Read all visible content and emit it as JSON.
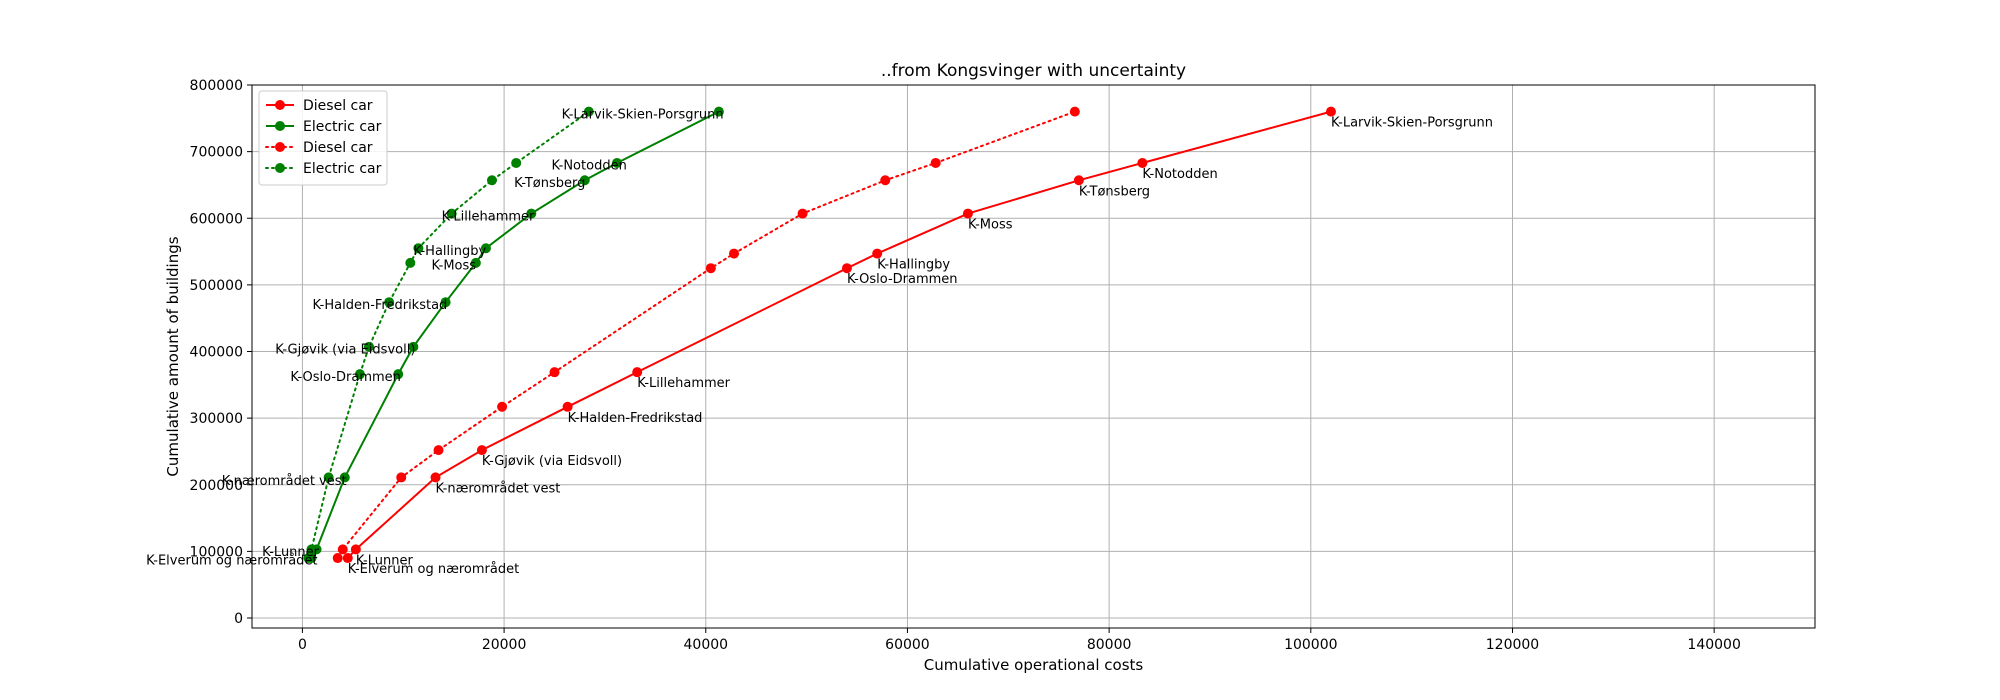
{
  "chart_data": {
    "type": "line",
    "title": "..from Kongsvinger with uncertainty",
    "xlabel": "Cumulative operational costs",
    "ylabel": "Cumulative amount of buildings",
    "xlim": [
      -5000,
      150000
    ],
    "ylim": [
      -15000,
      800000
    ],
    "xticks": [
      0,
      20000,
      40000,
      60000,
      80000,
      100000,
      120000,
      140000
    ],
    "yticks": [
      0,
      100000,
      200000,
      300000,
      400000,
      500000,
      600000,
      700000,
      800000
    ],
    "grid": true,
    "legend_position": "top-left",
    "colors": {
      "diesel": "#ff0000",
      "electric": "#008000"
    },
    "series": [
      {
        "name": "Diesel car",
        "color": "#ff0000",
        "style": "solid",
        "points": [
          {
            "x": 4500,
            "y": 90000,
            "label": "K-Elverum og nærområdet"
          },
          {
            "x": 5300,
            "y": 103000,
            "label": "K-Lunner"
          },
          {
            "x": 13200,
            "y": 211000,
            "label": "K-nærområdet vest"
          },
          {
            "x": 17800,
            "y": 252000,
            "label": "K-Gjøvik (via Eidsvoll)"
          },
          {
            "x": 26300,
            "y": 317000,
            "label": "K-Halden-Fredrikstad"
          },
          {
            "x": 33200,
            "y": 369000,
            "label": "K-Lillehammer"
          },
          {
            "x": 54000,
            "y": 525000,
            "label": "K-Oslo-Drammen"
          },
          {
            "x": 57000,
            "y": 547000,
            "label": "K-Hallingby"
          },
          {
            "x": 66000,
            "y": 607000,
            "label": "K-Moss"
          },
          {
            "x": 77000,
            "y": 657000,
            "label": "K-Tønsberg"
          },
          {
            "x": 83300,
            "y": 683000,
            "label": "K-Notodden"
          },
          {
            "x": 102000,
            "y": 760000,
            "label": "K-Larvik-Skien-Porsgrunn"
          }
        ]
      },
      {
        "name": "Electric car",
        "color": "#008000",
        "style": "solid",
        "points": [
          {
            "x": 900,
            "y": 90000,
            "label": ""
          },
          {
            "x": 1400,
            "y": 103000,
            "label": ""
          },
          {
            "x": 4200,
            "y": 211000,
            "label": ""
          },
          {
            "x": 9500,
            "y": 366000,
            "label": ""
          },
          {
            "x": 11000,
            "y": 407000,
            "label": ""
          },
          {
            "x": 14200,
            "y": 474000,
            "label": ""
          },
          {
            "x": 17200,
            "y": 533000,
            "label": ""
          },
          {
            "x": 18200,
            "y": 555000,
            "label": ""
          },
          {
            "x": 22700,
            "y": 607000,
            "label": ""
          },
          {
            "x": 28000,
            "y": 657000,
            "label": ""
          },
          {
            "x": 31200,
            "y": 683000,
            "label": ""
          },
          {
            "x": 41300,
            "y": 760000,
            "label": ""
          }
        ]
      },
      {
        "name": "Diesel car",
        "color": "#ff0000",
        "style": "dotted",
        "points": [
          {
            "x": 3500,
            "y": 90000,
            "label": ""
          },
          {
            "x": 4000,
            "y": 103000,
            "label": ""
          },
          {
            "x": 9800,
            "y": 211000,
            "label": ""
          },
          {
            "x": 13500,
            "y": 252000,
            "label": ""
          },
          {
            "x": 19800,
            "y": 317000,
            "label": ""
          },
          {
            "x": 25000,
            "y": 369000,
            "label": ""
          },
          {
            "x": 40500,
            "y": 525000,
            "label": ""
          },
          {
            "x": 42800,
            "y": 547000,
            "label": ""
          },
          {
            "x": 49600,
            "y": 607000,
            "label": ""
          },
          {
            "x": 57800,
            "y": 657000,
            "label": ""
          },
          {
            "x": 62800,
            "y": 683000,
            "label": ""
          },
          {
            "x": 76600,
            "y": 760000,
            "label": ""
          }
        ]
      },
      {
        "name": "Electric car",
        "color": "#008000",
        "style": "dotted",
        "points": [
          {
            "x": 600,
            "y": 90000,
            "label": ""
          },
          {
            "x": 900,
            "y": 103000,
            "label": ""
          },
          {
            "x": 2600,
            "y": 211000,
            "label": ""
          },
          {
            "x": 5700,
            "y": 366000,
            "label": ""
          },
          {
            "x": 6600,
            "y": 407000,
            "label": ""
          },
          {
            "x": 8600,
            "y": 474000,
            "label": ""
          },
          {
            "x": 10700,
            "y": 533000,
            "label": ""
          },
          {
            "x": 11500,
            "y": 555000,
            "label": ""
          },
          {
            "x": 14800,
            "y": 607000,
            "label": ""
          },
          {
            "x": 18800,
            "y": 657000,
            "label": ""
          },
          {
            "x": 21200,
            "y": 683000,
            "label": ""
          },
          {
            "x": 28400,
            "y": 760000,
            "label": ""
          }
        ]
      }
    ],
    "annotations": [
      {
        "text": "K-Elverum og nærområdet",
        "x": -15500,
        "y": 80000
      },
      {
        "text": "K-Lunner",
        "x": -4000,
        "y": 93000
      },
      {
        "text": "K-nærområdet vest",
        "x": -8000,
        "y": 200000
      },
      {
        "text": "K-Oslo-Drammen",
        "x": -1200,
        "y": 356000
      },
      {
        "text": "K-Gjøvik (via Eidsvoll)",
        "x": -2700,
        "y": 397000
      },
      {
        "text": "K-Halden-Fredrikstad",
        "x": 1000,
        "y": 464000
      },
      {
        "text": "K-Moss",
        "x": 12800,
        "y": 523000
      },
      {
        "text": "K-Hallingby",
        "x": 11000,
        "y": 545000
      },
      {
        "text": "K-Lillehammer",
        "x": 13800,
        "y": 597000
      },
      {
        "text": "K-Tønsberg",
        "x": 21000,
        "y": 647000
      },
      {
        "text": "K-Notodden",
        "x": 24700,
        "y": 673000
      },
      {
        "text": "K-Larvik-Skien-Porsgrunn",
        "x": 25700,
        "y": 750000
      }
    ]
  }
}
